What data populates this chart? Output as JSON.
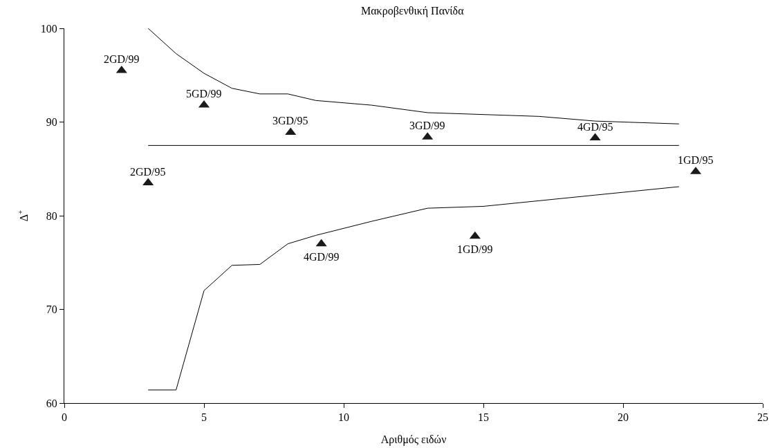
{
  "chart_data": {
    "type": "line",
    "title": "Μακροβενθική Πανίδα",
    "xlabel": "Αριθμός ειδών",
    "ylabel": "Δ$^{+}$",
    "xlim": [
      0,
      25
    ],
    "xticks": [
      0,
      5,
      10,
      15,
      20,
      25
    ],
    "ylim": [
      60,
      100
    ],
    "yticks": [
      60,
      70,
      80,
      90,
      100
    ],
    "grid": false,
    "series": [
      {
        "color": "#000000",
        "x": [
          3,
          4,
          5,
          6,
          7,
          8,
          9,
          11,
          13,
          15,
          17,
          19,
          22
        ],
        "values": [
          100,
          97.3,
          95.2,
          93.6,
          93.0,
          93.0,
          92.3,
          91.8,
          91.0,
          90.8,
          90.6,
          90.1,
          89.8
        ]
      },
      {
        "color": "#000000",
        "x": [
          3,
          22
        ],
        "values": [
          87.5,
          87.5
        ]
      },
      {
        "color": "#000000",
        "x": [
          3,
          4,
          5,
          6,
          7,
          8,
          9,
          11,
          13,
          15,
          17,
          19,
          22
        ],
        "values": [
          61.4,
          61.4,
          72.0,
          74.7,
          74.8,
          77.0,
          77.9,
          79.4,
          80.8,
          81.0,
          81.6,
          82.2,
          83.1
        ]
      },
      {
        "type": "scatter",
        "marker": "triangle",
        "color": "#1a1a1a",
        "x": [
          2.05,
          5,
          8.1,
          13,
          19,
          3,
          22.6,
          9.2,
          14.7
        ],
        "values": [
          95.5,
          91.8,
          88.9,
          88.4,
          88.3,
          83.5,
          84.7,
          77.0,
          77.8
        ]
      }
    ],
    "annotations": [
      {
        "text": "2GD/99",
        "x": 2.05,
        "y": 95.5
      },
      {
        "text": "5GD/99",
        "x": 5,
        "y": 91.8
      },
      {
        "text": "3GD/95",
        "x": 8.1,
        "y": 88.9
      },
      {
        "text": "3GD/99",
        "x": 13,
        "y": 88.4
      },
      {
        "text": "4GD/95",
        "x": 19,
        "y": 88.3
      },
      {
        "text": "2GD/95",
        "x": 3,
        "y": 83.5
      },
      {
        "text": "1GD/95",
        "x": 22.6,
        "y": 84.7
      },
      {
        "text": "4GD/99",
        "x": 9.2,
        "y": 77.0
      },
      {
        "text": "1GD/99",
        "x": 14.7,
        "y": 77.8
      }
    ]
  }
}
